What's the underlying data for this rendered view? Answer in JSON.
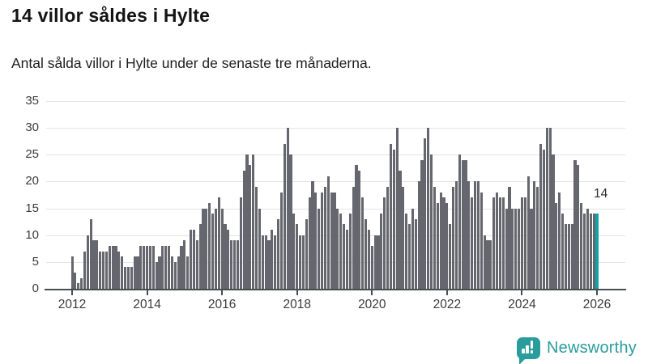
{
  "header": {
    "title": "14 villor såldes i Hylte",
    "subtitle": "Antal sålda villor i Hylte under de senaste tre månaderna."
  },
  "chart_data": {
    "type": "bar",
    "title": "14 villor såldes i Hylte",
    "subtitle": "Antal sålda villor i Hylte under de senaste tre månaderna.",
    "x_frequency": "monthly",
    "x_start": "2012-01",
    "x_end": "2026-01",
    "xlabel": "",
    "ylabel": "",
    "ylim": [
      0,
      35
    ],
    "grid": true,
    "legend": "none",
    "y_ticks": [
      0,
      5,
      10,
      15,
      20,
      25,
      30,
      35
    ],
    "x_tick_labels": [
      "2012",
      "2014",
      "2016",
      "2018",
      "2020",
      "2022",
      "2024",
      "2026"
    ],
    "bar_color": "#66666e",
    "highlight_color": "#10a3a3",
    "series": [
      {
        "name": "Antal sålda villor",
        "values": [
          6,
          3,
          1,
          2,
          7,
          10,
          13,
          9,
          9,
          7,
          7,
          7,
          8,
          8,
          8,
          7,
          6,
          4,
          4,
          4,
          6,
          6,
          8,
          8,
          8,
          8,
          8,
          5,
          6,
          8,
          8,
          8,
          6,
          5,
          6,
          8,
          9,
          6,
          11,
          11,
          9,
          12,
          15,
          15,
          16,
          14,
          15,
          17,
          15,
          12,
          11,
          9,
          9,
          9,
          17,
          22,
          25,
          23,
          25,
          19,
          15,
          10,
          10,
          9,
          11,
          10,
          13,
          18,
          27,
          30,
          25,
          14,
          12,
          10,
          10,
          13,
          17,
          20,
          18,
          15,
          18,
          19,
          21,
          18,
          18,
          15,
          14,
          12,
          11,
          14,
          19,
          23,
          22,
          17,
          13,
          11,
          8,
          10,
          10,
          14,
          17,
          19,
          27,
          26,
          30,
          22,
          19,
          14,
          12,
          15,
          13,
          20,
          24,
          28,
          30,
          25,
          19,
          16,
          18,
          17,
          16,
          12,
          19,
          20,
          25,
          24,
          24,
          20,
          17,
          20,
          20,
          18,
          10,
          9,
          9,
          17,
          18,
          17,
          17,
          15,
          19,
          15,
          15,
          15,
          17,
          17,
          21,
          15,
          20,
          19,
          27,
          26,
          30,
          30,
          25,
          16,
          18,
          14,
          12,
          12,
          12,
          24,
          23,
          16,
          14,
          15,
          14,
          14
        ]
      }
    ],
    "highlight": {
      "x": "2026-01",
      "value": 14,
      "label": "14"
    }
  },
  "colors": {
    "bar": "#66666e",
    "highlight": "#10a3a3",
    "axis": "#4a4d52",
    "grid": "#e4e4e4",
    "brand": "#2b9c9c"
  },
  "footer": {
    "brand": "Newsworthy",
    "logo_icon": "newsworthy-speech-bubble-bar-chart-icon"
  }
}
